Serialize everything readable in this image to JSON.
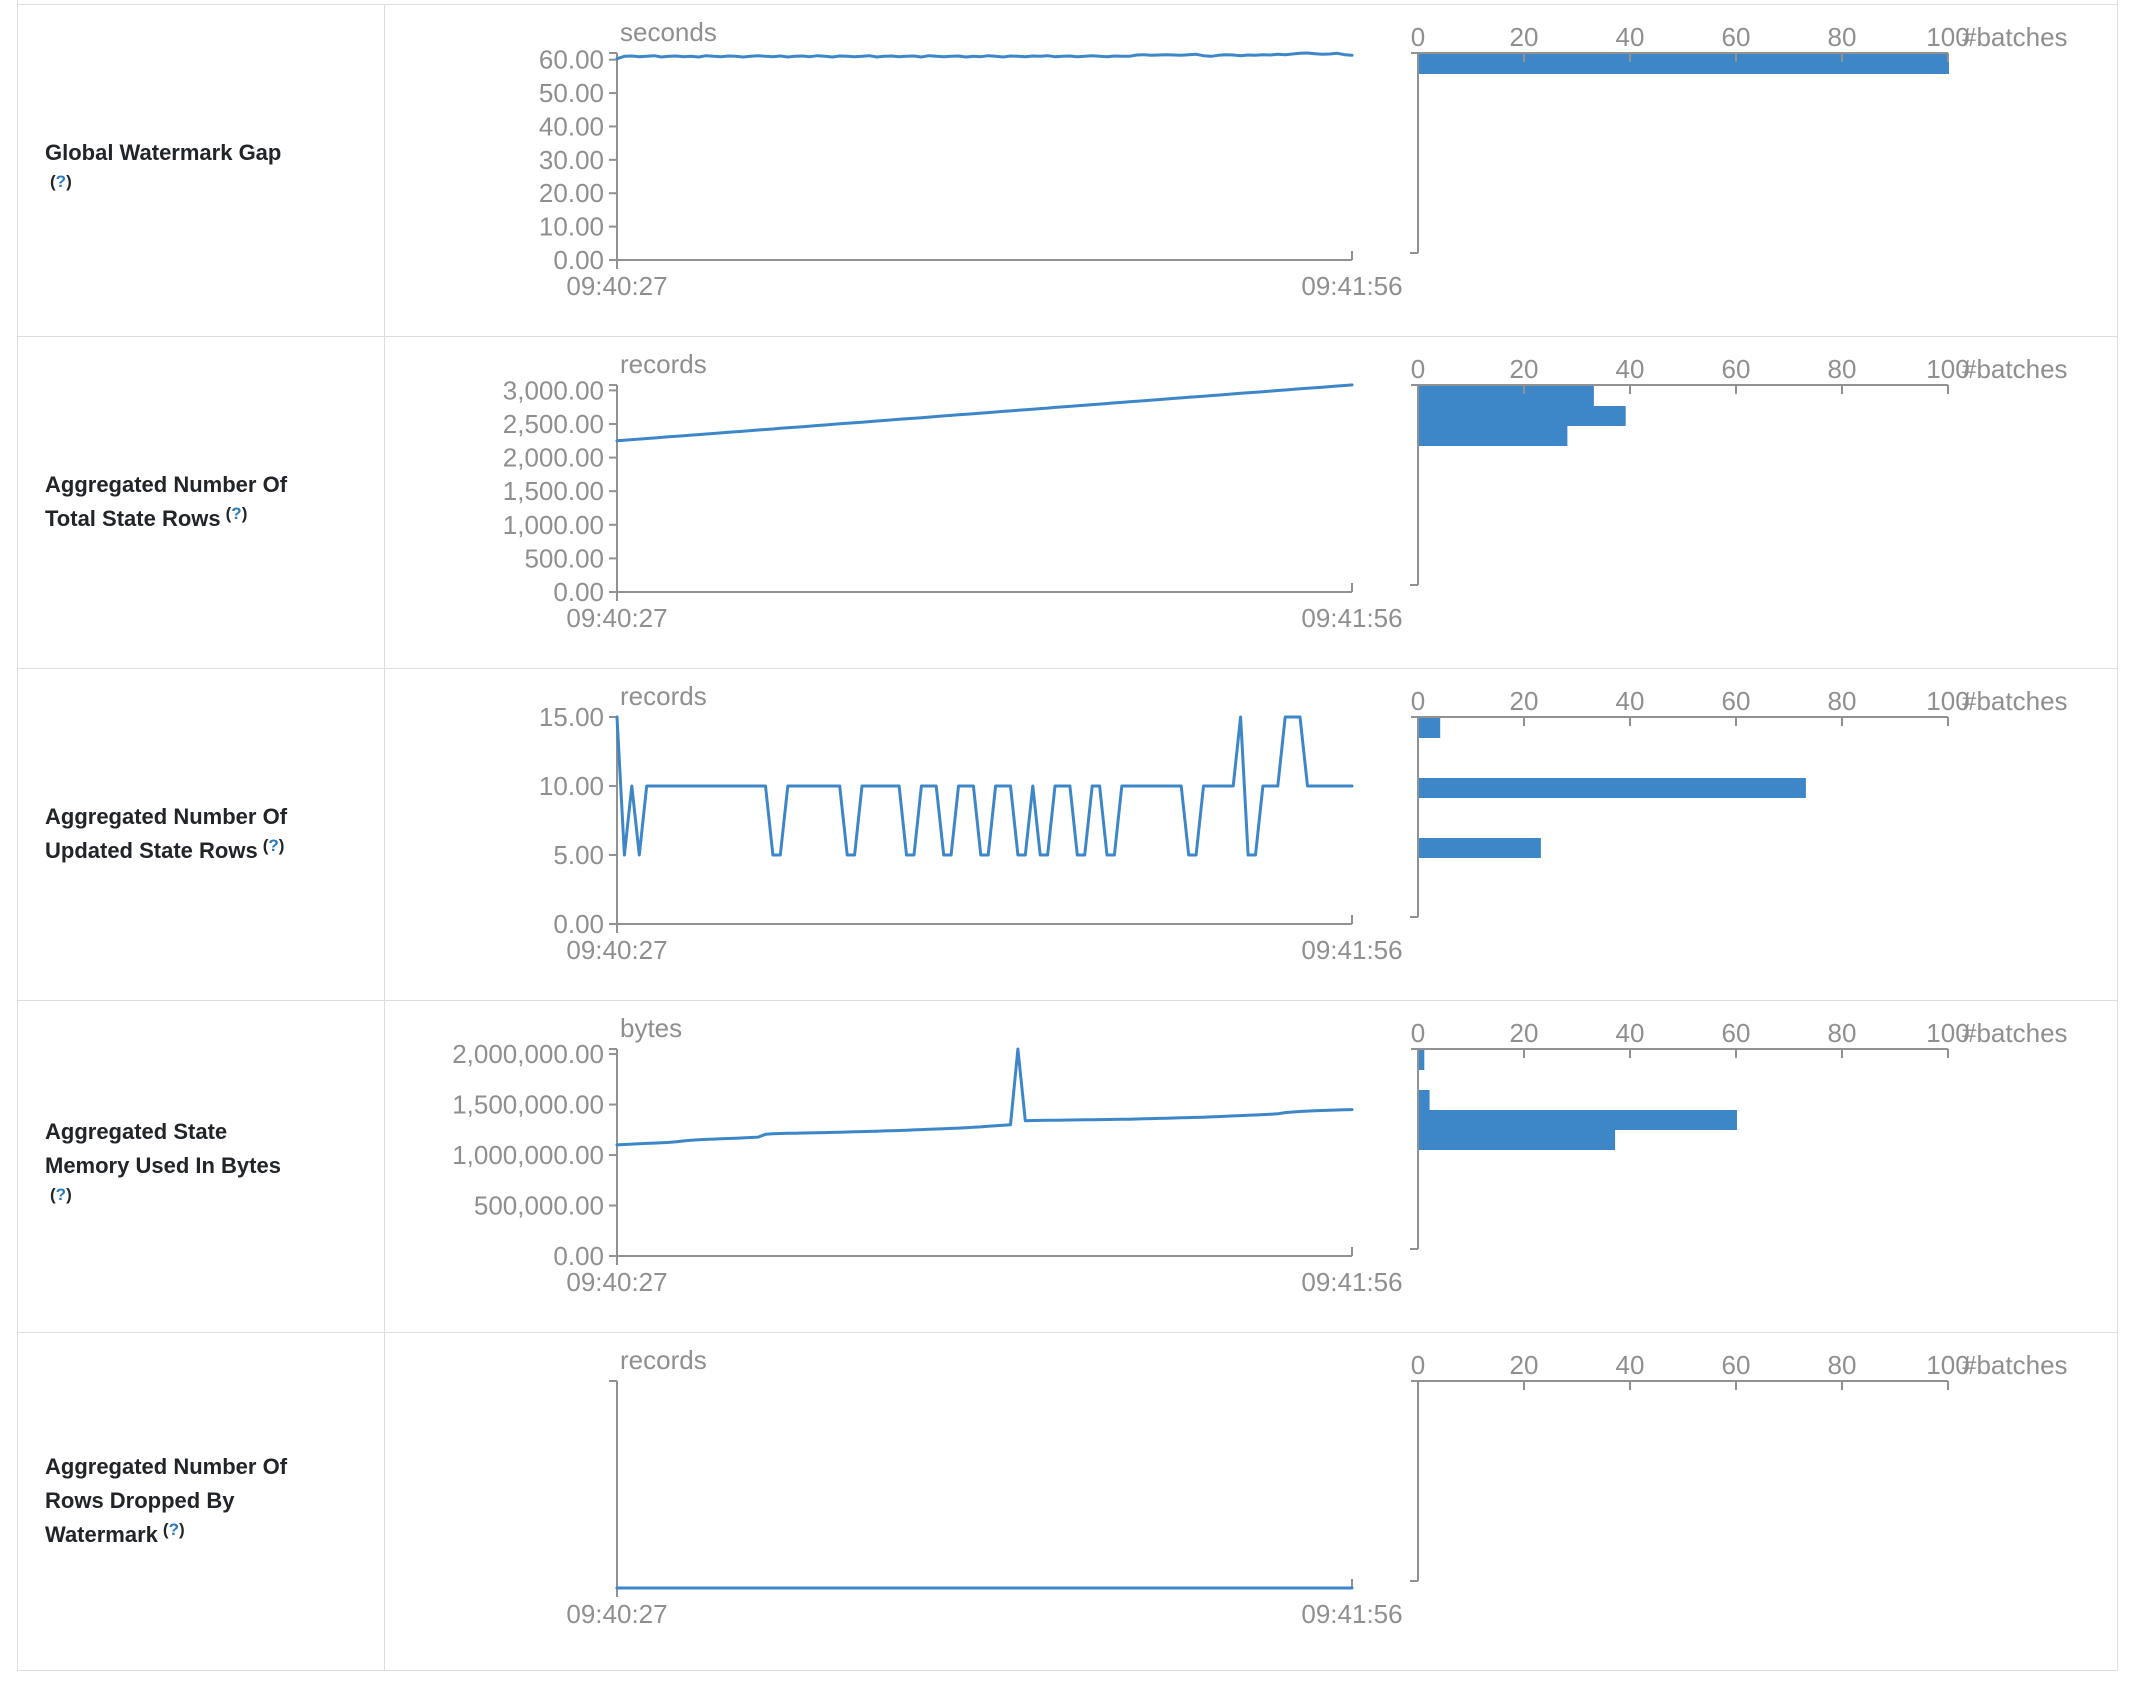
{
  "colors": {
    "accent_blue": "#3d87c8",
    "axis_gray": "#919191",
    "label_gray": "#8f8f8f",
    "title_dark": "#212529",
    "help_blue": "#2a7ab9",
    "border_gray": "#dbdee2"
  },
  "help_marker": {
    "open": "(",
    "q": "?",
    "close": ")"
  },
  "x_axis": {
    "start_label": "09:40:27",
    "end_label": "09:41:56"
  },
  "histogram_axis": {
    "tick_values": [
      0,
      20,
      40,
      60,
      80,
      100
    ],
    "tick_labels": [
      "0",
      "20",
      "40",
      "60",
      "80",
      "100"
    ],
    "unit_label": "#batches",
    "max": 100
  },
  "rows": [
    {
      "title_lines": [
        "Global Watermark Gap"
      ],
      "help_inline": false,
      "unit": "seconds",
      "y_max": 62,
      "y_ticks": [
        {
          "v": 60,
          "label": "60.00"
        },
        {
          "v": 50,
          "label": "50.00"
        },
        {
          "v": 40,
          "label": "40.00"
        },
        {
          "v": 30,
          "label": "30.00"
        },
        {
          "v": 20,
          "label": "20.00"
        },
        {
          "v": 10,
          "label": "10.00"
        },
        {
          "v": 0,
          "label": "0.00"
        }
      ],
      "series": [
        60.3,
        61.0,
        61.1,
        60.9,
        61.0,
        61.2,
        60.8,
        61.0,
        61.1,
        60.9,
        61.0,
        60.8,
        61.2,
        61.0,
        60.9,
        61.1,
        61.0,
        60.8,
        61.0,
        61.2,
        61.0,
        60.9,
        61.1,
        60.8,
        61.0,
        61.1,
        60.9,
        61.2,
        61.0,
        60.8,
        61.1,
        61.0,
        60.9,
        61.0,
        61.2,
        60.8,
        61.0,
        61.1,
        60.9,
        61.0,
        61.1,
        60.8,
        61.2,
        61.0,
        60.9,
        61.0,
        61.1,
        60.8,
        61.0,
        60.9,
        61.2,
        61.0,
        60.8,
        61.1,
        61.0,
        60.9,
        61.1,
        61.0,
        61.2,
        60.9,
        61.0,
        61.1,
        60.9,
        61.0,
        61.2,
        61.0,
        60.9,
        61.1,
        61.0,
        61.0,
        61.4,
        61.5,
        61.3,
        61.4,
        61.5,
        61.4,
        61.3,
        61.5,
        61.6,
        61.2,
        61.0,
        61.3,
        61.5,
        61.4,
        61.2,
        61.4,
        61.3,
        61.5,
        61.4,
        61.6,
        61.5,
        61.7,
        61.9,
        62.0,
        61.8,
        61.6,
        61.7,
        61.9,
        61.5,
        61.3
      ],
      "histogram_counts": [
        100,
        0,
        0,
        0,
        0,
        0,
        0,
        0,
        0,
        0
      ]
    },
    {
      "title_lines": [
        "Aggregated Number Of",
        "Total State Rows"
      ],
      "help_inline": true,
      "unit": "records",
      "y_max": 3080,
      "y_ticks": [
        {
          "v": 3000,
          "label": "3,000.00"
        },
        {
          "v": 2500,
          "label": "2,500.00"
        },
        {
          "v": 2000,
          "label": "2,000.00"
        },
        {
          "v": 1500,
          "label": "1,500.00"
        },
        {
          "v": 1000,
          "label": "1,000.00"
        },
        {
          "v": 500,
          "label": "500.00"
        },
        {
          "v": 0,
          "label": "0.00"
        }
      ],
      "series": [
        2250,
        2258,
        2267,
        2275,
        2284,
        2292,
        2300,
        2309,
        2317,
        2326,
        2334,
        2342,
        2351,
        2359,
        2368,
        2376,
        2384,
        2393,
        2401,
        2410,
        2418,
        2426,
        2435,
        2443,
        2452,
        2460,
        2468,
        2477,
        2485,
        2494,
        2502,
        2510,
        2519,
        2527,
        2536,
        2544,
        2552,
        2561,
        2569,
        2578,
        2586,
        2594,
        2603,
        2611,
        2620,
        2628,
        2636,
        2645,
        2653,
        2662,
        2670,
        2678,
        2687,
        2695,
        2704,
        2712,
        2720,
        2729,
        2737,
        2746,
        2754,
        2762,
        2771,
        2779,
        2788,
        2796,
        2804,
        2813,
        2821,
        2830,
        2838,
        2846,
        2855,
        2863,
        2872,
        2880,
        2888,
        2897,
        2905,
        2914,
        2922,
        2930,
        2939,
        2947,
        2956,
        2964,
        2972,
        2981,
        2989,
        2998,
        3006,
        3014,
        3023,
        3031,
        3040,
        3048,
        3056,
        3065,
        3073,
        3082
      ],
      "histogram_counts": [
        33,
        39,
        28,
        0,
        0,
        0,
        0,
        0,
        0,
        0
      ]
    },
    {
      "title_lines": [
        "Aggregated Number Of",
        "Updated State Rows"
      ],
      "help_inline": true,
      "unit": "records",
      "y_max": 15,
      "y_ticks": [
        {
          "v": 15,
          "label": "15.00"
        },
        {
          "v": 10,
          "label": "10.00"
        },
        {
          "v": 5,
          "label": "5.00"
        },
        {
          "v": 0,
          "label": "0.00"
        }
      ],
      "series": [
        15,
        5,
        10,
        5,
        10,
        10,
        10,
        10,
        10,
        10,
        10,
        10,
        10,
        10,
        10,
        10,
        10,
        10,
        10,
        10,
        10,
        5,
        5,
        10,
        10,
        10,
        10,
        10,
        10,
        10,
        10,
        5,
        5,
        10,
        10,
        10,
        10,
        10,
        10,
        5,
        5,
        10,
        10,
        10,
        5,
        5,
        10,
        10,
        10,
        5,
        5,
        10,
        10,
        10,
        5,
        5,
        10,
        5,
        5,
        10,
        10,
        10,
        5,
        5,
        10,
        10,
        5,
        5,
        10,
        10,
        10,
        10,
        10,
        10,
        10,
        10,
        10,
        5,
        5,
        10,
        10,
        10,
        10,
        10,
        15,
        5,
        5,
        10,
        10,
        10,
        15,
        15,
        15,
        10,
        10,
        10,
        10,
        10,
        10,
        10
      ],
      "histogram_counts": [
        4,
        0,
        0,
        73,
        0,
        0,
        23,
        0,
        0,
        0
      ]
    },
    {
      "title_lines": [
        "Aggregated State",
        "Memory Used In Bytes"
      ],
      "help_inline": false,
      "unit": "bytes",
      "y_max": 2050000,
      "y_ticks": [
        {
          "v": 2000000,
          "label": "2,000,000.00"
        },
        {
          "v": 1500000,
          "label": "1,500,000.00"
        },
        {
          "v": 1000000,
          "label": "1,000,000.00"
        },
        {
          "v": 500000,
          "label": "500,000.00"
        },
        {
          "v": 0,
          "label": "0.00"
        }
      ],
      "series": [
        1100000,
        1104000,
        1108000,
        1112000,
        1115000,
        1118000,
        1121000,
        1125000,
        1132000,
        1140000,
        1146000,
        1151000,
        1155000,
        1158000,
        1161000,
        1164000,
        1167000,
        1170000,
        1174000,
        1178000,
        1205000,
        1210000,
        1213000,
        1215000,
        1216000,
        1218000,
        1219000,
        1221000,
        1222000,
        1224000,
        1226000,
        1228000,
        1230000,
        1232000,
        1234000,
        1236000,
        1239000,
        1241000,
        1243000,
        1246000,
        1249000,
        1252000,
        1255000,
        1258000,
        1261000,
        1264000,
        1267000,
        1271000,
        1275000,
        1279000,
        1284000,
        1289000,
        1294000,
        1299000,
        2050000,
        1340000,
        1342000,
        1343000,
        1344000,
        1345000,
        1346000,
        1347000,
        1348000,
        1349000,
        1350000,
        1351000,
        1352000,
        1353000,
        1354000,
        1355000,
        1357000,
        1359000,
        1361000,
        1363000,
        1365000,
        1367000,
        1369000,
        1371000,
        1373000,
        1375000,
        1378000,
        1381000,
        1384000,
        1387000,
        1390000,
        1393000,
        1396000,
        1400000,
        1404000,
        1408000,
        1420000,
        1426000,
        1431000,
        1435000,
        1438000,
        1441000,
        1444000,
        1446000,
        1448000,
        1450000
      ],
      "histogram_counts": [
        1,
        0,
        2,
        60,
        37,
        0,
        0,
        0,
        0,
        0
      ]
    },
    {
      "title_lines": [
        "Aggregated Number Of",
        "Rows Dropped By",
        "Watermark"
      ],
      "help_inline": true,
      "unit": "records",
      "y_max": 1,
      "y_ticks": [],
      "series": [
        0,
        0,
        0,
        0,
        0,
        0,
        0,
        0,
        0,
        0,
        0,
        0,
        0,
        0,
        0,
        0,
        0,
        0,
        0,
        0,
        0,
        0,
        0,
        0,
        0,
        0,
        0,
        0,
        0,
        0,
        0,
        0,
        0,
        0,
        0,
        0,
        0,
        0,
        0,
        0,
        0,
        0,
        0,
        0,
        0,
        0,
        0,
        0,
        0,
        0,
        0,
        0,
        0,
        0,
        0,
        0,
        0,
        0,
        0,
        0,
        0,
        0,
        0,
        0,
        0,
        0,
        0,
        0,
        0,
        0,
        0,
        0,
        0,
        0,
        0,
        0,
        0,
        0,
        0,
        0,
        0,
        0,
        0,
        0,
        0,
        0,
        0,
        0,
        0,
        0,
        0,
        0,
        0,
        0,
        0,
        0,
        0,
        0,
        0,
        0
      ],
      "histogram_counts": [
        0,
        0,
        0,
        0,
        0,
        0,
        0,
        0,
        0,
        0
      ]
    }
  ]
}
